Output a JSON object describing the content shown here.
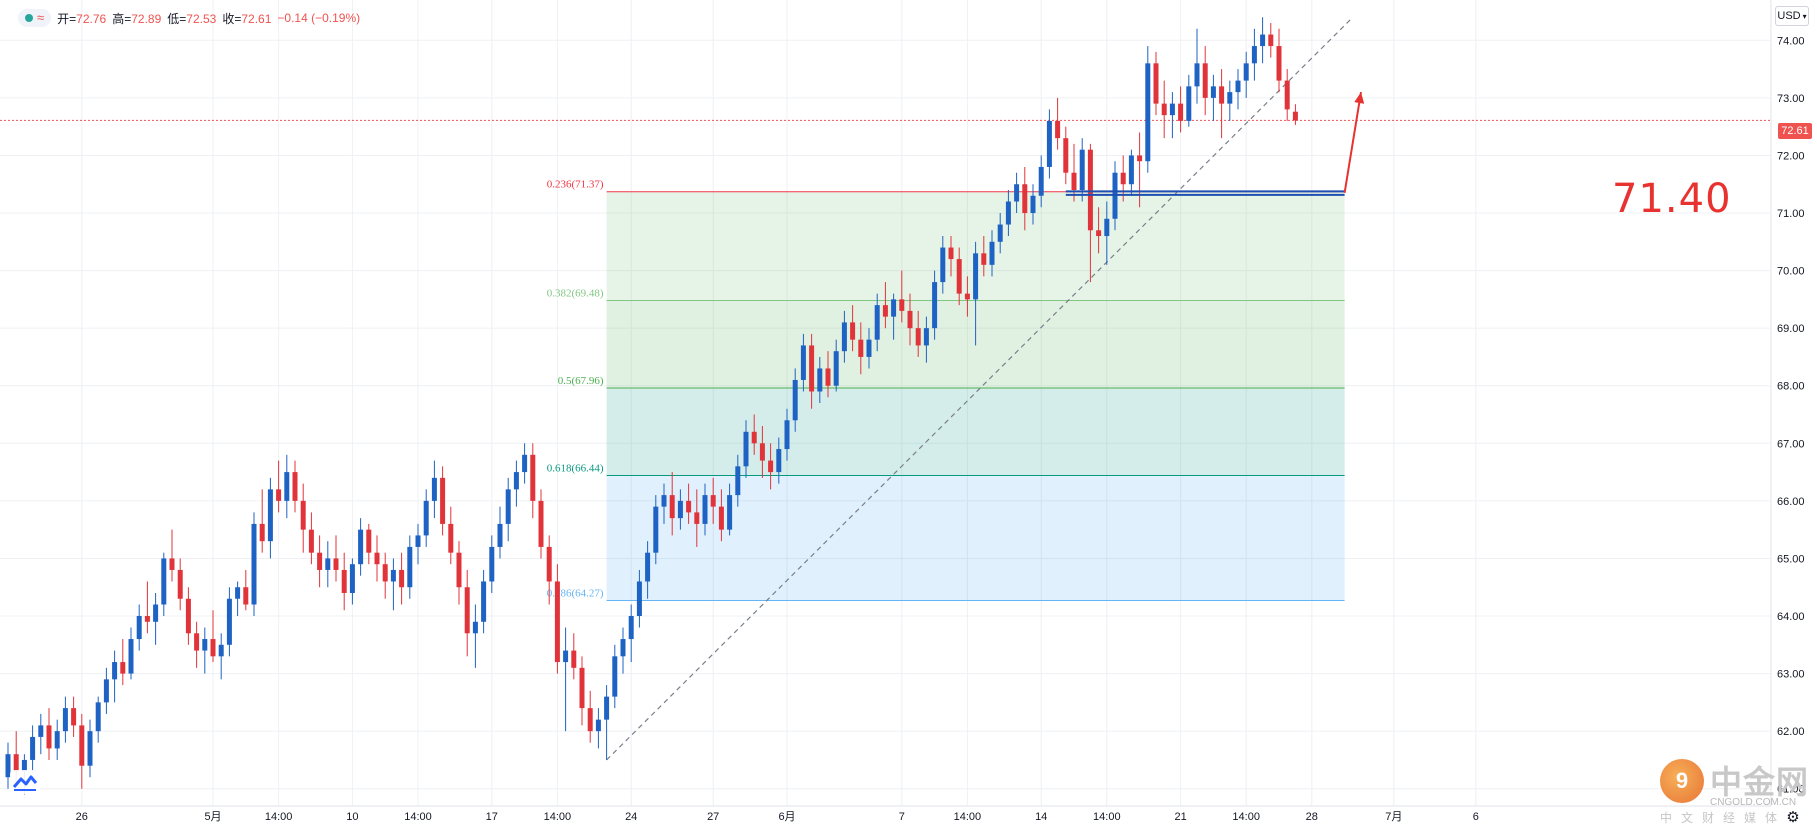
{
  "legend": {
    "open_label": "开",
    "open": "72.76",
    "high_label": "高",
    "high": "72.89",
    "low_label": "低",
    "low": "72.53",
    "close_label": "收",
    "close": "72.61",
    "change": "−0.14 (−0.19%)"
  },
  "currency": "USD",
  "last_price": "72.61",
  "annotation_value": "71.40",
  "watermark": {
    "title": "中金网",
    "url": "CNGOLD.COM.CN",
    "subtitle": "中文财经媒体"
  },
  "colors": {
    "up": "#1e62c4",
    "down": "#e0343a",
    "background": "#ffffff",
    "grid": "#eef0f4",
    "accent": "#e8322f"
  },
  "chart_data": {
    "type": "candlestick",
    "ylim": [
      60.7,
      74.7
    ],
    "y_ticks": [
      "74.00",
      "73.00",
      "72.00",
      "71.00",
      "70.00",
      "69.00",
      "68.00",
      "67.00",
      "66.00",
      "65.00",
      "64.00",
      "63.00",
      "62.00",
      "61.00"
    ],
    "x_tick_labels": [
      {
        "label": "26",
        "index": 9
      },
      {
        "label": "5月",
        "index": 25
      },
      {
        "label": "14:00",
        "index": 33
      },
      {
        "label": "10",
        "index": 42
      },
      {
        "label": "14:00",
        "index": 50
      },
      {
        "label": "17",
        "index": 59
      },
      {
        "label": "14:00",
        "index": 67
      },
      {
        "label": "24",
        "index": 76
      },
      {
        "label": "27",
        "index": 86
      },
      {
        "label": "6月",
        "index": 95
      },
      {
        "label": "7",
        "index": 109
      },
      {
        "label": "14:00",
        "index": 117
      },
      {
        "label": "14",
        "index": 126
      },
      {
        "label": "14:00",
        "index": 134
      },
      {
        "label": "21",
        "index": 143
      },
      {
        "label": "14:00",
        "index": 151
      },
      {
        "label": "28",
        "index": 159
      },
      {
        "label": "7月",
        "index": 169
      },
      {
        "label": "6",
        "index": 179
      }
    ],
    "fibonacci": {
      "levels": [
        {
          "label": "0.236(71.37)",
          "value": 71.37,
          "color": "#f23645"
        },
        {
          "label": "0.382(69.48)",
          "value": 69.48,
          "color": "#81c784"
        },
        {
          "label": "0.5(67.96)",
          "value": 67.96,
          "color": "#4caf50"
        },
        {
          "label": "0.618(66.44)",
          "value": 66.44,
          "color": "#089981"
        },
        {
          "label": "0.786(64.27)",
          "value": 64.27,
          "color": "#64b5f6"
        }
      ],
      "start_index": 73,
      "end_index": 163
    },
    "trend_line": {
      "from": {
        "index": 73,
        "value": 61.5
      },
      "to": {
        "index": 164,
        "value": 74.4
      }
    },
    "support_line": {
      "value": 71.35,
      "from_index": 129,
      "to_index": 163
    },
    "arrow": {
      "from": {
        "index": 163,
        "value": 71.35
      },
      "to": {
        "index": 165,
        "value": 73.1
      }
    },
    "last_price_value": 72.61,
    "ohlc": [
      [
        61.2,
        61.8,
        61.0,
        61.6
      ],
      [
        61.6,
        62.0,
        61.1,
        61.3
      ],
      [
        61.3,
        61.6,
        60.9,
        61.5
      ],
      [
        61.5,
        62.1,
        61.3,
        61.9
      ],
      [
        61.9,
        62.3,
        61.6,
        62.1
      ],
      [
        62.1,
        62.4,
        61.5,
        61.7
      ],
      [
        61.7,
        62.2,
        61.5,
        62.0
      ],
      [
        62.0,
        62.6,
        61.8,
        62.4
      ],
      [
        62.4,
        62.6,
        61.9,
        62.1
      ],
      [
        62.1,
        62.3,
        61.0,
        61.4
      ],
      [
        61.4,
        62.2,
        61.2,
        62.0
      ],
      [
        62.0,
        62.6,
        61.8,
        62.5
      ],
      [
        62.5,
        63.1,
        62.3,
        62.9
      ],
      [
        62.9,
        63.4,
        62.5,
        63.2
      ],
      [
        63.2,
        63.6,
        62.8,
        63.0
      ],
      [
        63.0,
        63.8,
        62.9,
        63.6
      ],
      [
        63.6,
        64.2,
        63.4,
        64.0
      ],
      [
        64.0,
        64.6,
        63.7,
        63.9
      ],
      [
        63.9,
        64.4,
        63.5,
        64.2
      ],
      [
        64.2,
        65.1,
        64.0,
        65.0
      ],
      [
        65.0,
        65.5,
        64.6,
        64.8
      ],
      [
        64.8,
        65.0,
        64.1,
        64.3
      ],
      [
        64.3,
        64.5,
        63.5,
        63.7
      ],
      [
        63.7,
        63.9,
        63.1,
        63.4
      ],
      [
        63.4,
        63.8,
        63.0,
        63.6
      ],
      [
        63.6,
        64.1,
        63.2,
        63.3
      ],
      [
        63.3,
        63.7,
        62.9,
        63.5
      ],
      [
        63.5,
        64.5,
        63.3,
        64.3
      ],
      [
        64.3,
        64.6,
        64.0,
        64.5
      ],
      [
        64.5,
        64.8,
        64.1,
        64.2
      ],
      [
        64.2,
        65.8,
        64.0,
        65.6
      ],
      [
        65.6,
        66.2,
        65.1,
        65.3
      ],
      [
        65.3,
        66.4,
        65.0,
        66.2
      ],
      [
        66.2,
        66.7,
        65.8,
        66.0
      ],
      [
        66.0,
        66.8,
        65.7,
        66.5
      ],
      [
        66.5,
        66.7,
        65.8,
        66.0
      ],
      [
        66.0,
        66.3,
        65.1,
        65.5
      ],
      [
        65.5,
        65.8,
        64.9,
        65.1
      ],
      [
        65.1,
        65.4,
        64.5,
        64.8
      ],
      [
        64.8,
        65.3,
        64.5,
        65.0
      ],
      [
        65.0,
        65.4,
        64.6,
        64.8
      ],
      [
        64.8,
        65.1,
        64.1,
        64.4
      ],
      [
        64.4,
        65.0,
        64.2,
        64.9
      ],
      [
        64.9,
        65.7,
        64.7,
        65.5
      ],
      [
        65.5,
        65.6,
        64.9,
        65.1
      ],
      [
        65.1,
        65.4,
        64.6,
        64.9
      ],
      [
        64.9,
        65.1,
        64.3,
        64.6
      ],
      [
        64.6,
        65.0,
        64.1,
        64.8
      ],
      [
        64.8,
        65.1,
        64.2,
        64.5
      ],
      [
        64.5,
        65.4,
        64.3,
        65.2
      ],
      [
        65.2,
        65.6,
        64.9,
        65.4
      ],
      [
        65.4,
        66.2,
        65.2,
        66.0
      ],
      [
        66.0,
        66.7,
        65.7,
        66.4
      ],
      [
        66.4,
        66.6,
        65.4,
        65.6
      ],
      [
        65.6,
        65.9,
        64.9,
        65.1
      ],
      [
        65.1,
        65.3,
        64.2,
        64.5
      ],
      [
        64.5,
        64.8,
        63.3,
        63.7
      ],
      [
        63.7,
        64.2,
        63.1,
        63.9
      ],
      [
        63.9,
        64.8,
        63.7,
        64.6
      ],
      [
        64.6,
        65.4,
        64.4,
        65.2
      ],
      [
        65.2,
        65.9,
        65.0,
        65.6
      ],
      [
        65.6,
        66.4,
        65.3,
        66.2
      ],
      [
        66.2,
        66.7,
        65.9,
        66.5
      ],
      [
        66.5,
        67.0,
        66.3,
        66.8
      ],
      [
        66.8,
        67.0,
        65.7,
        66.0
      ],
      [
        66.0,
        66.2,
        65.0,
        65.2
      ],
      [
        65.2,
        65.4,
        64.2,
        64.6
      ],
      [
        64.6,
        64.9,
        63.0,
        63.2
      ],
      [
        63.2,
        63.8,
        62.0,
        63.4
      ],
      [
        63.4,
        63.7,
        62.9,
        63.1
      ],
      [
        63.1,
        63.3,
        62.1,
        62.4
      ],
      [
        62.4,
        62.7,
        61.8,
        62.0
      ],
      [
        62.0,
        62.4,
        61.7,
        62.2
      ],
      [
        62.2,
        62.8,
        61.5,
        62.6
      ],
      [
        62.6,
        63.5,
        62.4,
        63.3
      ],
      [
        63.3,
        63.8,
        63.0,
        63.6
      ],
      [
        63.6,
        64.2,
        63.2,
        64.0
      ],
      [
        64.0,
        64.8,
        63.8,
        64.6
      ],
      [
        64.6,
        65.3,
        64.3,
        65.1
      ],
      [
        65.1,
        66.1,
        64.9,
        65.9
      ],
      [
        65.9,
        66.3,
        65.6,
        66.1
      ],
      [
        66.1,
        66.5,
        65.4,
        65.7
      ],
      [
        65.7,
        66.2,
        65.5,
        66.0
      ],
      [
        66.0,
        66.3,
        65.6,
        65.8
      ],
      [
        65.8,
        66.2,
        65.2,
        65.6
      ],
      [
        65.6,
        66.3,
        65.4,
        66.1
      ],
      [
        66.1,
        66.4,
        65.6,
        65.9
      ],
      [
        65.9,
        66.2,
        65.3,
        65.5
      ],
      [
        65.5,
        66.3,
        65.4,
        66.1
      ],
      [
        66.1,
        66.8,
        65.9,
        66.6
      ],
      [
        66.6,
        67.4,
        66.4,
        67.2
      ],
      [
        67.2,
        67.5,
        66.8,
        67.0
      ],
      [
        67.0,
        67.3,
        66.4,
        66.7
      ],
      [
        66.7,
        67.0,
        66.2,
        66.5
      ],
      [
        66.5,
        67.1,
        66.3,
        66.9
      ],
      [
        66.9,
        67.6,
        66.7,
        67.4
      ],
      [
        67.4,
        68.3,
        67.2,
        68.1
      ],
      [
        68.1,
        68.9,
        67.9,
        68.7
      ],
      [
        68.7,
        68.9,
        67.6,
        67.9
      ],
      [
        67.9,
        68.5,
        67.7,
        68.3
      ],
      [
        68.3,
        68.6,
        67.8,
        68.0
      ],
      [
        68.0,
        68.8,
        67.9,
        68.6
      ],
      [
        68.6,
        69.3,
        68.4,
        69.1
      ],
      [
        69.1,
        69.4,
        68.6,
        68.8
      ],
      [
        68.8,
        69.1,
        68.2,
        68.5
      ],
      [
        68.5,
        69.0,
        68.3,
        68.8
      ],
      [
        68.8,
        69.6,
        68.6,
        69.4
      ],
      [
        69.4,
        69.8,
        69.0,
        69.2
      ],
      [
        69.2,
        69.6,
        68.8,
        69.5
      ],
      [
        69.5,
        70.0,
        69.1,
        69.3
      ],
      [
        69.3,
        69.6,
        68.7,
        69.0
      ],
      [
        69.0,
        69.3,
        68.5,
        68.7
      ],
      [
        68.7,
        69.2,
        68.4,
        69.0
      ],
      [
        69.0,
        70.0,
        68.8,
        69.8
      ],
      [
        69.8,
        70.6,
        69.6,
        70.4
      ],
      [
        70.4,
        70.6,
        69.9,
        70.2
      ],
      [
        70.2,
        70.4,
        69.4,
        69.6
      ],
      [
        69.6,
        69.9,
        69.2,
        69.5
      ],
      [
        69.5,
        70.5,
        68.7,
        70.3
      ],
      [
        70.3,
        70.6,
        69.9,
        70.1
      ],
      [
        70.1,
        70.7,
        69.9,
        70.5
      ],
      [
        70.5,
        71.0,
        70.3,
        70.8
      ],
      [
        70.8,
        71.4,
        70.6,
        71.2
      ],
      [
        71.2,
        71.7,
        71.0,
        71.5
      ],
      [
        71.5,
        71.8,
        70.7,
        71.0
      ],
      [
        71.0,
        71.5,
        70.8,
        71.3
      ],
      [
        71.3,
        72.0,
        71.1,
        71.8
      ],
      [
        71.8,
        72.8,
        71.6,
        72.6
      ],
      [
        72.6,
        73.0,
        72.1,
        72.3
      ],
      [
        72.3,
        72.5,
        71.5,
        71.7
      ],
      [
        71.7,
        72.2,
        71.2,
        71.4
      ],
      [
        71.4,
        72.3,
        71.2,
        72.1
      ],
      [
        72.1,
        72.2,
        69.8,
        70.7
      ],
      [
        70.7,
        71.1,
        70.3,
        70.6
      ],
      [
        70.6,
        71.2,
        70.1,
        70.9
      ],
      [
        70.9,
        71.9,
        70.7,
        71.7
      ],
      [
        71.7,
        72.0,
        71.2,
        71.5
      ],
      [
        71.5,
        72.1,
        71.3,
        72.0
      ],
      [
        72.0,
        72.4,
        71.1,
        71.9
      ],
      [
        71.9,
        73.9,
        71.7,
        73.6
      ],
      [
        73.6,
        73.8,
        72.7,
        72.9
      ],
      [
        72.9,
        73.3,
        72.3,
        72.7
      ],
      [
        72.7,
        73.1,
        72.3,
        72.9
      ],
      [
        72.9,
        73.2,
        72.4,
        72.6
      ],
      [
        72.6,
        73.4,
        72.5,
        73.2
      ],
      [
        73.2,
        74.2,
        72.9,
        73.6
      ],
      [
        73.6,
        73.9,
        72.7,
        73.0
      ],
      [
        73.0,
        73.4,
        72.6,
        73.2
      ],
      [
        73.2,
        73.5,
        72.3,
        72.9
      ],
      [
        72.9,
        73.3,
        72.6,
        73.1
      ],
      [
        73.1,
        73.5,
        72.8,
        73.3
      ],
      [
        73.3,
        73.8,
        73.0,
        73.6
      ],
      [
        73.6,
        74.2,
        73.3,
        73.9
      ],
      [
        73.9,
        74.4,
        73.6,
        74.1
      ],
      [
        74.1,
        74.3,
        73.7,
        73.9
      ],
      [
        73.9,
        74.2,
        73.1,
        73.3
      ],
      [
        73.3,
        73.5,
        72.6,
        72.8
      ],
      [
        72.76,
        72.89,
        72.53,
        72.61
      ]
    ]
  }
}
